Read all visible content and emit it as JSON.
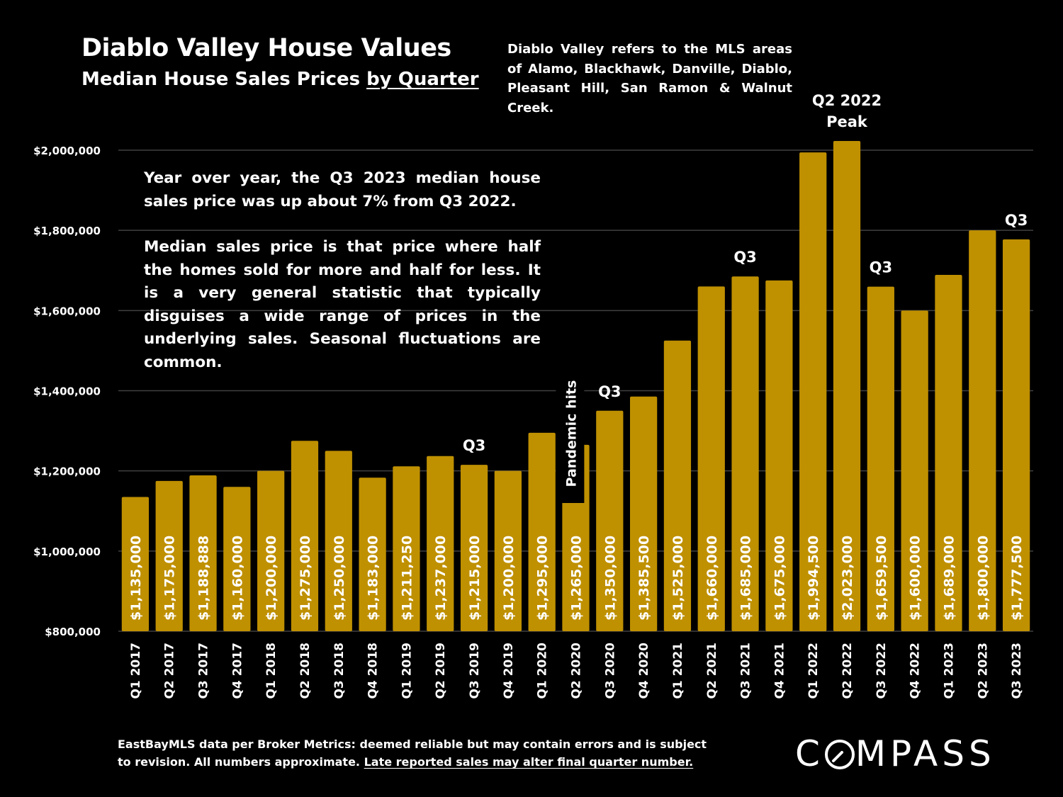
{
  "header": {
    "title": "Diablo Valley House Values",
    "subtitle_prefix": "Median House Sales Prices ",
    "subtitle_underlined": "by Quarter",
    "area_note": "Diablo Valley refers to the MLS areas of Alamo, Blackhawk, Danville, Diablo, Pleasant Hill, San Ramon & Walnut Creek."
  },
  "explanation": {
    "p1": "Year over year, the Q3 2023 median house sales price was up about 7% from Q3 2022.",
    "p2": "Median sales price is that price where half the homes sold for more and half for less. It is a very general statistic that typically disguises a wide range of prices in the underlying sales. Seasonal fluctuations are common."
  },
  "footer": {
    "line1": "EastBayMLS data per Broker Metrics:  deemed reliable but may contain errors and is subject",
    "line2_prefix": "to revision. All numbers approximate. ",
    "line2_underlined": "Late reported sales may alter final quarter number."
  },
  "logo": {
    "text_before": "C",
    "text_after": "MPASS",
    "o_icon": "compass-o-icon"
  },
  "colors": {
    "background": "#000000",
    "bar": "#bf9000",
    "gridline": "#404040",
    "text": "#ffffff"
  },
  "chart_data": {
    "type": "bar",
    "title": "Diablo Valley House Values",
    "subtitle": "Median House Sales Prices by Quarter",
    "categories": [
      "Q1 2017",
      "Q2 2017",
      "Q3 2017",
      "Q4 2017",
      "Q1 2018",
      "Q2 2018",
      "Q3 2018",
      "Q4 2018",
      "Q1 2019",
      "Q2 2019",
      "Q3 2019",
      "Q4 2019",
      "Q1 2020",
      "Q2 2020",
      "Q3 2020",
      "Q4 2020",
      "Q1 2021",
      "Q2 2021",
      "Q3 2021",
      "Q4 2021",
      "Q1 2022",
      "Q2 2022",
      "Q3 2022",
      "Q4 2022",
      "Q1 2023",
      "Q2 2023",
      "Q3 2023"
    ],
    "values": [
      1135000,
      1175000,
      1188888,
      1160000,
      1200000,
      1275000,
      1250000,
      1183000,
      1211250,
      1237000,
      1215000,
      1200000,
      1295000,
      1265000,
      1350000,
      1385500,
      1525000,
      1660000,
      1685000,
      1675000,
      1994500,
      2023000,
      1659500,
      1600000,
      1689000,
      1800000,
      1777500
    ],
    "data_labels": [
      "$1,135,000",
      "$1,175,000",
      "$1,188,888",
      "$1,160,000",
      "$1,200,000",
      "$1,275,000",
      "$1,250,000",
      "$1,183,000",
      "$1,211,250",
      "$1,237,000",
      "$1,215,000",
      "$1,200,000",
      "$1,295,000",
      "$1,265,000",
      "$1,350,000",
      "$1,385,500",
      "$1,525,000",
      "$1,660,000",
      "$1,685,000",
      "$1,675,000",
      "$1,994,500",
      "$2,023,000",
      "$1,659,500",
      "$1,600,000",
      "$1,689,000",
      "$1,800,000",
      "$1,777,500"
    ],
    "ylim": [
      800000,
      2100000
    ],
    "yticks": [
      800000,
      1000000,
      1200000,
      1400000,
      1600000,
      1800000,
      2000000
    ],
    "ytick_labels": [
      "$800,000",
      "$1,000,000",
      "$1,200,000",
      "$1,400,000",
      "$1,600,000",
      "$1,800,000",
      "$2,000,000"
    ],
    "grid": true,
    "legend": "none",
    "annotations": [
      {
        "category": "Q3 2019",
        "text": "Q3"
      },
      {
        "category": "Q3 2020",
        "text": "Q3"
      },
      {
        "category": "Q3 2021",
        "text": "Q3"
      },
      {
        "category": "Q2 2022",
        "text": "Q2 2022 Peak"
      },
      {
        "category": "Q3 2022",
        "text": "Q3"
      },
      {
        "category": "Q3 2023",
        "text": "Q3"
      },
      {
        "category": "Q2 2020",
        "text": "Pandemic hits",
        "rotated": true
      }
    ]
  }
}
